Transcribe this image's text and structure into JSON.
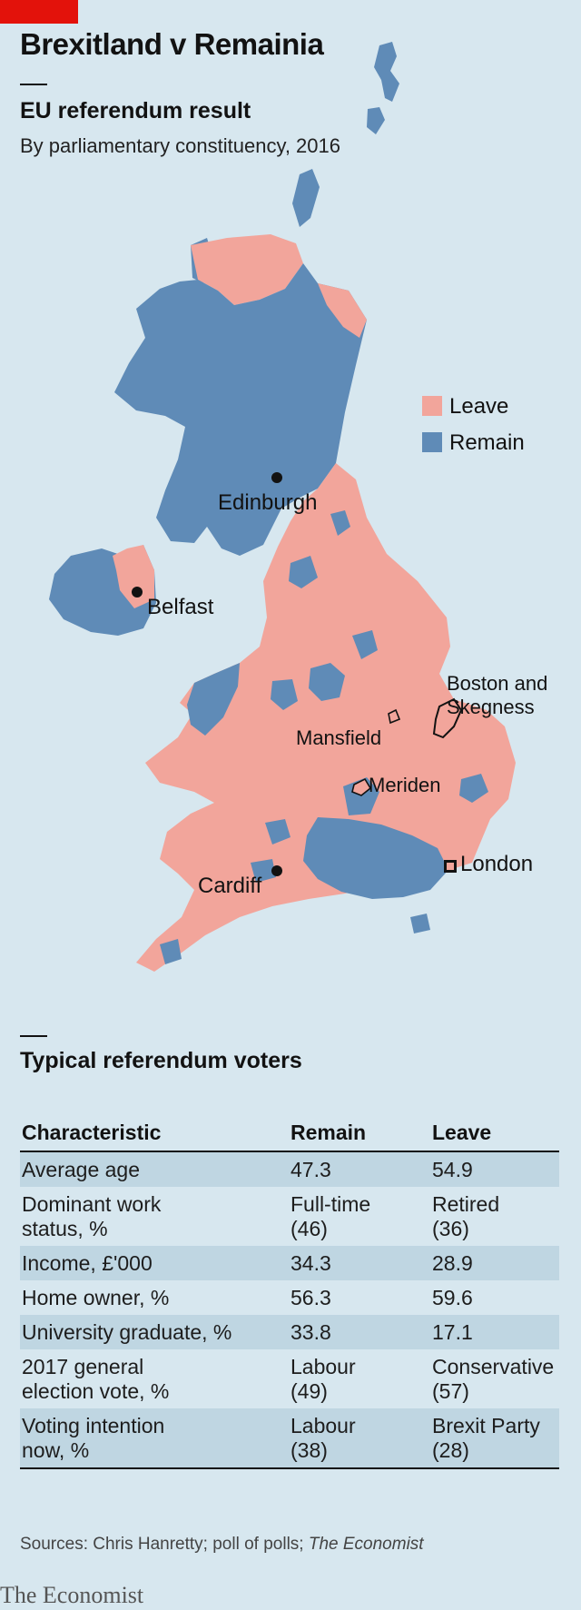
{
  "header": {
    "title": "Brexitland v Remainia",
    "map_title": "EU referendum result",
    "map_subtitle": "By parliamentary constituency, 2016"
  },
  "colors": {
    "leave": "#f2a59b",
    "remain": "#5f8bb7",
    "background": "#d7e7ef",
    "brand_red": "#e3120b"
  },
  "legend": {
    "leave": "Leave",
    "remain": "Remain"
  },
  "places": {
    "edinburgh": "Edinburgh",
    "belfast": "Belfast",
    "boston_line1": "Boston and",
    "boston_line2": "Skegness",
    "mansfield": "Mansfield",
    "meriden": "Meriden",
    "london": "London",
    "cardiff": "Cardiff"
  },
  "table": {
    "title": "Typical referendum voters",
    "columns": [
      "Characteristic",
      "Remain",
      "Leave"
    ],
    "rows": [
      {
        "label": [
          "Average age"
        ],
        "remain": [
          "47.3"
        ],
        "leave": [
          "54.9"
        ]
      },
      {
        "label": [
          "Dominant work",
          "status, %"
        ],
        "remain": [
          "Full-time",
          "(46)"
        ],
        "leave": [
          "Retired",
          "(36)"
        ]
      },
      {
        "label": [
          "Income, £'000"
        ],
        "remain": [
          "34.3"
        ],
        "leave": [
          "28.9"
        ]
      },
      {
        "label": [
          "Home owner, %"
        ],
        "remain": [
          "56.3"
        ],
        "leave": [
          "59.6"
        ]
      },
      {
        "label": [
          "University graduate, %"
        ],
        "remain": [
          "33.8"
        ],
        "leave": [
          "17.1"
        ]
      },
      {
        "label": [
          "2017 general",
          "election vote, %"
        ],
        "remain": [
          "Labour",
          "(49)"
        ],
        "leave": [
          "Conservative",
          "(57)"
        ]
      },
      {
        "label": [
          "Voting intention",
          "now, %"
        ],
        "remain": [
          "Labour",
          "(38)"
        ],
        "leave": [
          "Brexit Party",
          "(28)"
        ]
      }
    ]
  },
  "footer": {
    "sources_prefix": "Sources: Chris Hanretty; poll of polls; ",
    "sources_italic": "The Economist",
    "brand": "The Economist"
  }
}
